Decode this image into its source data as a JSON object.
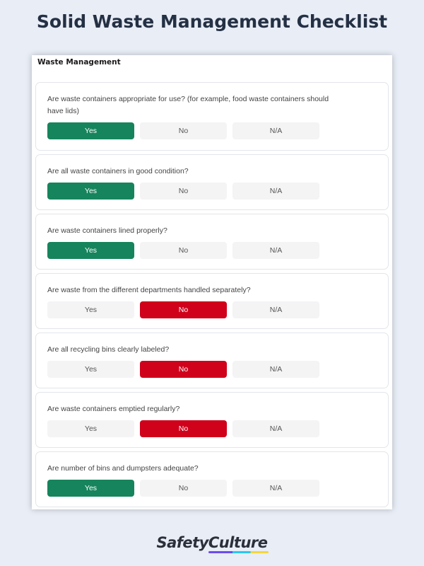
{
  "page_title": "Solid Waste Management Checklist",
  "section_title": "Waste Management",
  "options": [
    "Yes",
    "No",
    "N/A"
  ],
  "colors": {
    "yes": "#16845c",
    "no": "#d0021b",
    "unselected": "#f4f4f5"
  },
  "questions": [
    {
      "text": "Are waste containers appropriate for use? (for example, food waste containers should have lids)",
      "answer": "Yes"
    },
    {
      "text": "Are all waste containers in good condition?",
      "answer": "Yes"
    },
    {
      "text": "Are waste containers lined properly?",
      "answer": "Yes"
    },
    {
      "text": "Are waste from the different departments handled separately?",
      "answer": "No"
    },
    {
      "text": "Are all recycling bins clearly labeled?",
      "answer": "No"
    },
    {
      "text": "Are waste containers emptied regularly?",
      "answer": "No"
    },
    {
      "text": "Are number of bins and dumpsters adequate?",
      "answer": "Yes"
    }
  ],
  "brand": "SafetyCulture"
}
